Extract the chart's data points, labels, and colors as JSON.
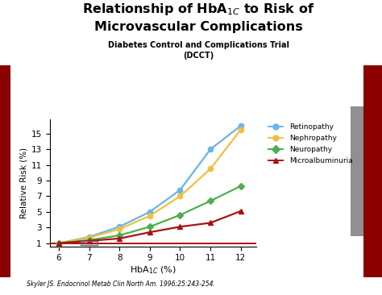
{
  "title_line1": "Relationship of HbA$_{1C}$ to Risk of",
  "title_line2": "Microvascular Complications",
  "subtitle": "Diabetes Control and Complications Trial\n(DCCT)",
  "ylabel": "Relative Risk (%)",
  "xlabel_latex": "HbA$_{1C}$ (%)",
  "footnote": "Skyler JS. Endocrinol Metab Clin North Am. 1996;25:243-254.",
  "x": [
    6,
    7,
    8,
    9,
    10,
    11,
    12
  ],
  "retinopathy": [
    1.0,
    1.8,
    3.1,
    5.0,
    7.8,
    13.0,
    16.0
  ],
  "nephropathy": [
    1.0,
    1.7,
    2.8,
    4.5,
    7.0,
    10.5,
    15.5
  ],
  "neuropathy": [
    1.0,
    1.4,
    2.0,
    3.1,
    4.6,
    6.4,
    8.3
  ],
  "microalbuminuria": [
    1.0,
    1.3,
    1.6,
    2.4,
    3.1,
    3.6,
    5.1
  ],
  "color_retinopathy": "#6ab4e8",
  "color_nephropathy": "#f0c040",
  "color_neuropathy": "#4caf50",
  "color_microalbuminuria": "#aa1111",
  "background_color": "#ffffff",
  "sidebar_left_color": "#8b0000",
  "sidebar_right_gray": "#909090",
  "sidebar_right_red": "#8b0000",
  "yticks": [
    1,
    3,
    5,
    7,
    9,
    11,
    13,
    15
  ],
  "xticks": [
    6,
    7,
    8,
    9,
    10,
    11,
    12
  ],
  "ylim": [
    0.6,
    16.8
  ],
  "xlim": [
    5.7,
    12.5
  ]
}
